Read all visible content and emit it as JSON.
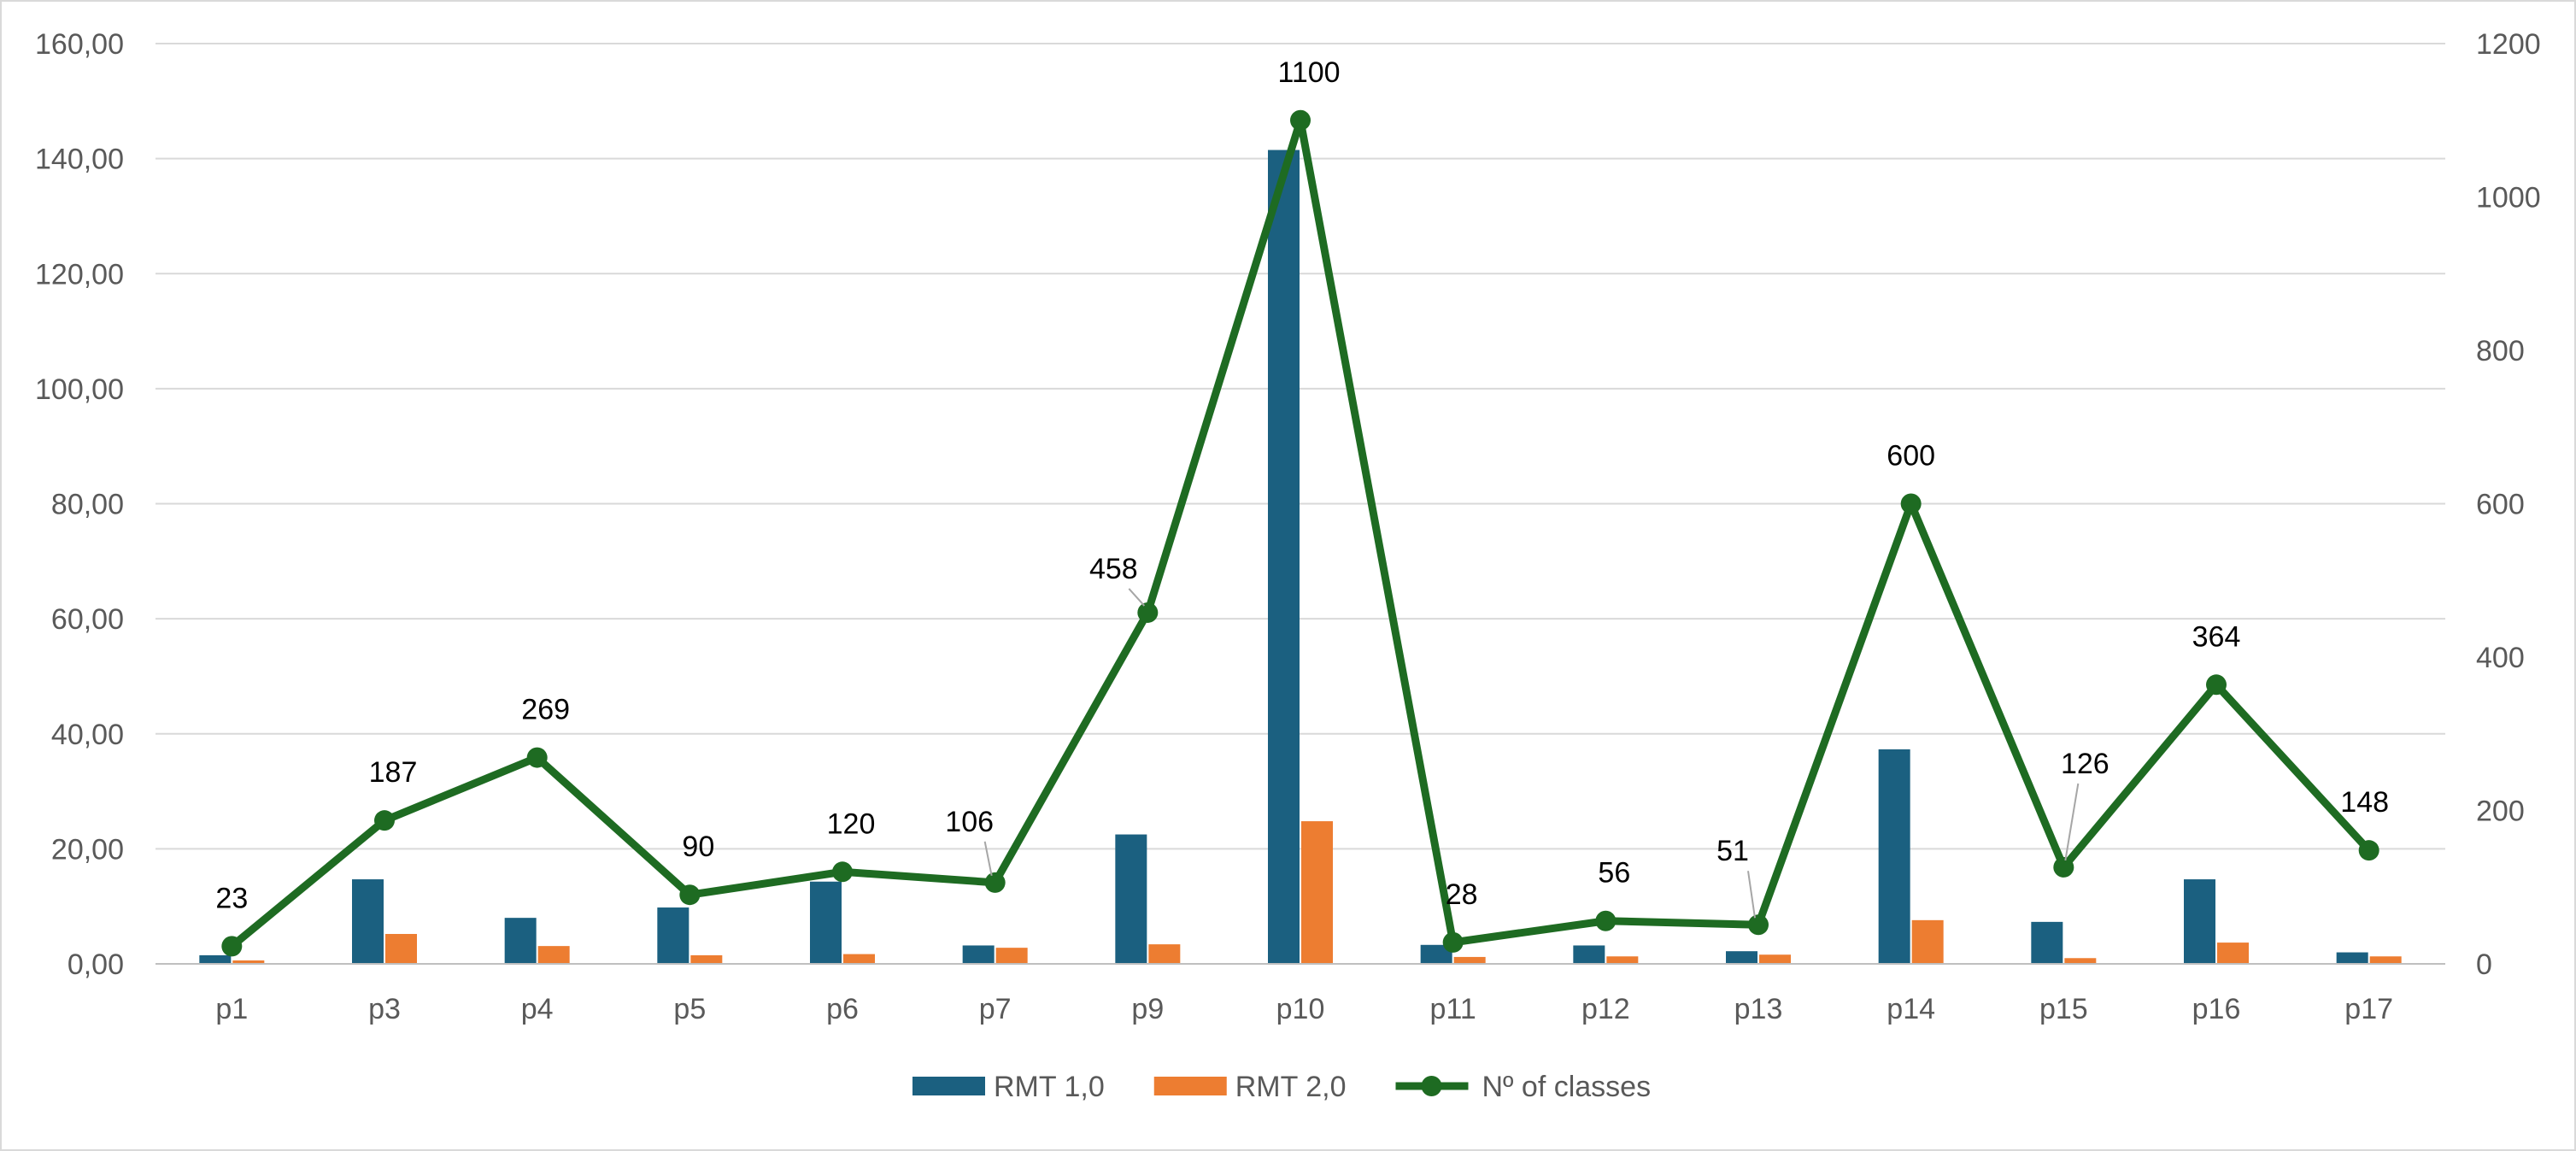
{
  "chart_data": {
    "type": "bar",
    "categories": [
      "p1",
      "p3",
      "p4",
      "p5",
      "p6",
      "p7",
      "p9",
      "p10",
      "p11",
      "p12",
      "p13",
      "p14",
      "p15",
      "p16",
      "p17"
    ],
    "series": [
      {
        "name": "RMT 1,0",
        "kind": "bar",
        "axis": "left",
        "color": "#1b6080",
        "values": [
          1.5,
          14.7,
          8.0,
          9.8,
          14.3,
          3.2,
          22.5,
          141.5,
          3.3,
          3.2,
          2.2,
          37.3,
          7.3,
          14.7,
          2.0
        ]
      },
      {
        "name": "RMT 2,0",
        "kind": "bar",
        "axis": "left",
        "color": "#ed7d31",
        "values": [
          0.6,
          5.2,
          3.1,
          1.5,
          1.7,
          2.8,
          3.4,
          24.8,
          1.2,
          1.3,
          1.6,
          7.6,
          1.0,
          3.7,
          1.3
        ]
      },
      {
        "name": "Nº of classes",
        "kind": "line",
        "axis": "right",
        "color": "#1e6b22",
        "values": [
          23,
          187,
          269,
          90,
          120,
          106,
          458,
          1100,
          28,
          56,
          51,
          600,
          126,
          364,
          148
        ],
        "labels": [
          "23",
          "187",
          "269",
          "90",
          "120",
          "106",
          "458",
          "1100",
          "28",
          "56",
          "51",
          "600",
          "126",
          "364",
          "148"
        ]
      }
    ],
    "y_left": {
      "min": 0,
      "max": 160,
      "ticks": [
        "0,00",
        "20,00",
        "40,00",
        "60,00",
        "80,00",
        "100,00",
        "120,00",
        "140,00",
        "160,00"
      ]
    },
    "y_right": {
      "min": 0,
      "max": 1200,
      "ticks": [
        "0",
        "200",
        "400",
        "600",
        "800",
        "1000",
        "1200"
      ]
    },
    "title": "",
    "xlabel": "",
    "ylabel": "",
    "grid": true,
    "legend_position": "bottom"
  }
}
